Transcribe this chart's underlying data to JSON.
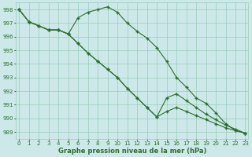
{
  "xlabel": "Graphe pression niveau de la mer (hPa)",
  "background_color": "#cce8e8",
  "grid_color": "#99ccbb",
  "line_color": "#2d6e2d",
  "ylim": [
    988.5,
    998.5
  ],
  "xlim": [
    -0.3,
    23.3
  ],
  "yticks": [
    989,
    990,
    991,
    992,
    993,
    994,
    995,
    996,
    997,
    998
  ],
  "xticks": [
    0,
    1,
    2,
    3,
    4,
    5,
    6,
    7,
    8,
    9,
    10,
    11,
    12,
    13,
    14,
    15,
    16,
    17,
    18,
    19,
    20,
    21,
    22,
    23
  ],
  "line1": [
    998.0,
    997.1,
    996.8,
    996.5,
    996.5,
    996.2,
    997.4,
    997.8,
    998.0,
    998.2,
    997.8,
    997.0,
    996.4,
    995.9,
    995.2,
    994.2,
    993.0,
    992.3,
    991.5,
    991.1,
    990.4,
    989.6,
    989.1,
    988.9
  ],
  "line2": [
    998.0,
    997.1,
    996.8,
    996.5,
    996.5,
    996.2,
    995.5,
    994.8,
    994.2,
    993.6,
    993.0,
    992.2,
    991.5,
    990.8,
    990.1,
    991.5,
    991.8,
    991.3,
    990.8,
    990.3,
    989.9,
    989.5,
    989.2,
    988.9
  ],
  "line3": [
    998.0,
    997.1,
    996.8,
    996.5,
    996.5,
    996.2,
    995.5,
    994.8,
    994.2,
    993.6,
    993.0,
    992.2,
    991.5,
    990.8,
    990.1,
    990.5,
    990.8,
    990.5,
    990.2,
    989.9,
    989.6,
    989.3,
    989.1,
    988.9
  ]
}
